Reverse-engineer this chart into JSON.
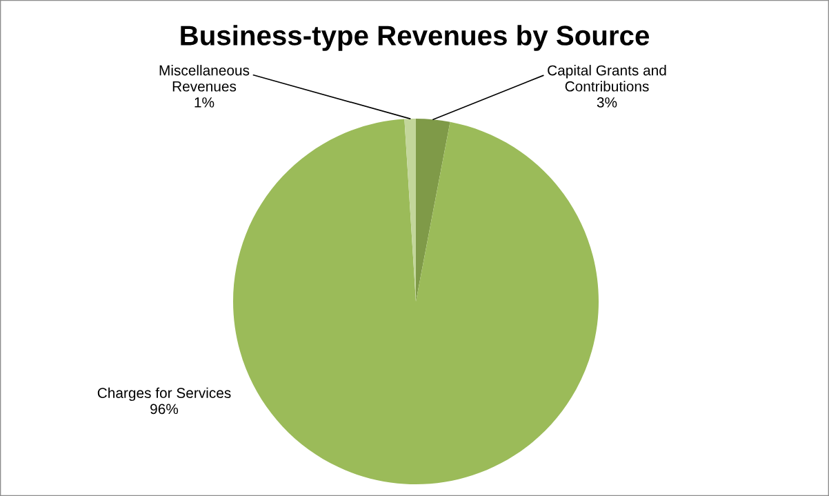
{
  "chart_data": {
    "type": "pie",
    "title": "Business-type Revenues by Source",
    "categories": [
      "Capital Grants and\nContributions",
      "Charges for Services",
      "Miscellaneous\nRevenues"
    ],
    "values": [
      3,
      96,
      1
    ],
    "colors": [
      "#7f9a48",
      "#9bbb59",
      "#c3d69b"
    ],
    "value_labels": [
      "3%",
      "96%",
      "1%"
    ],
    "legend": false
  }
}
